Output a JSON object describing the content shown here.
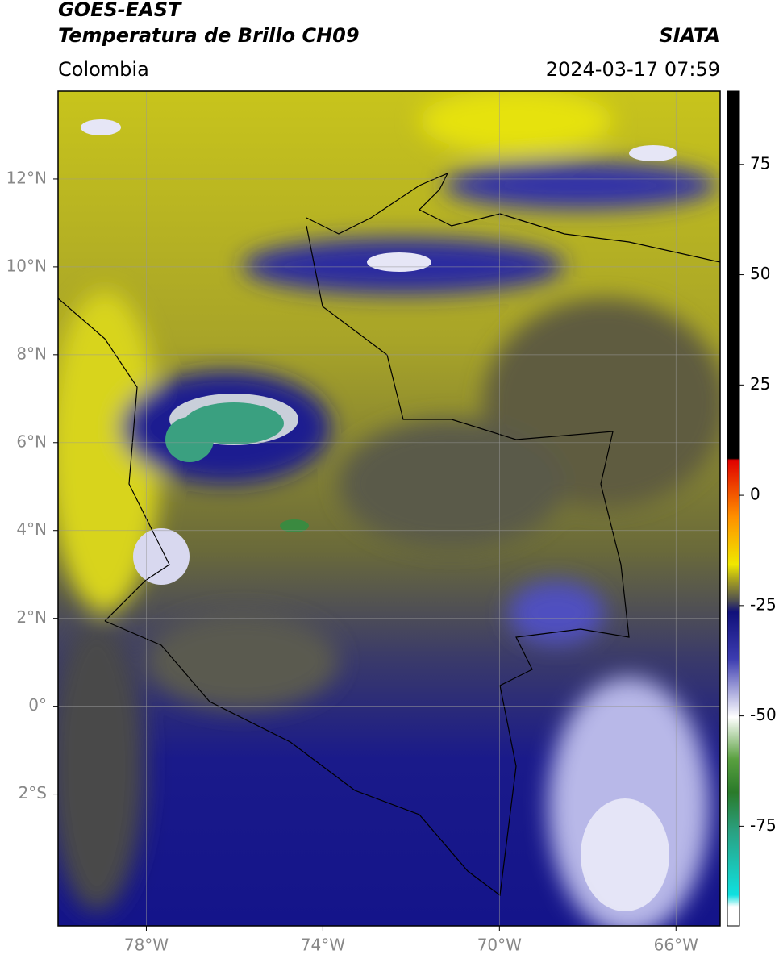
{
  "header": {
    "title": "GOES-EAST",
    "subtitle": "Temperatura de Brillo CH09",
    "region": "Colombia",
    "source": "SIATA",
    "timestamp": "2024-03-17 07:59"
  },
  "map": {
    "xlim": [
      -80,
      -65
    ],
    "ylim": [
      -5,
      14
    ],
    "xticks": [
      {
        "value": -78,
        "label": "78°W"
      },
      {
        "value": -74,
        "label": "74°W"
      },
      {
        "value": -70,
        "label": "70°W"
      },
      {
        "value": -66,
        "label": "66°W"
      }
    ],
    "yticks": [
      {
        "value": 12,
        "label": "12°N"
      },
      {
        "value": 10,
        "label": "10°N"
      },
      {
        "value": 8,
        "label": "8°N"
      },
      {
        "value": 6,
        "label": "6°N"
      },
      {
        "value": 4,
        "label": "4°N"
      },
      {
        "value": 2,
        "label": "2°N"
      },
      {
        "value": 0,
        "label": "0°"
      },
      {
        "value": -2,
        "label": "2°S"
      }
    ],
    "grid": true
  },
  "colorbar": {
    "clim": [
      -97.6,
      91.6
    ],
    "ticks": [
      75,
      50,
      25,
      0,
      -25,
      -50,
      -75
    ]
  }
}
